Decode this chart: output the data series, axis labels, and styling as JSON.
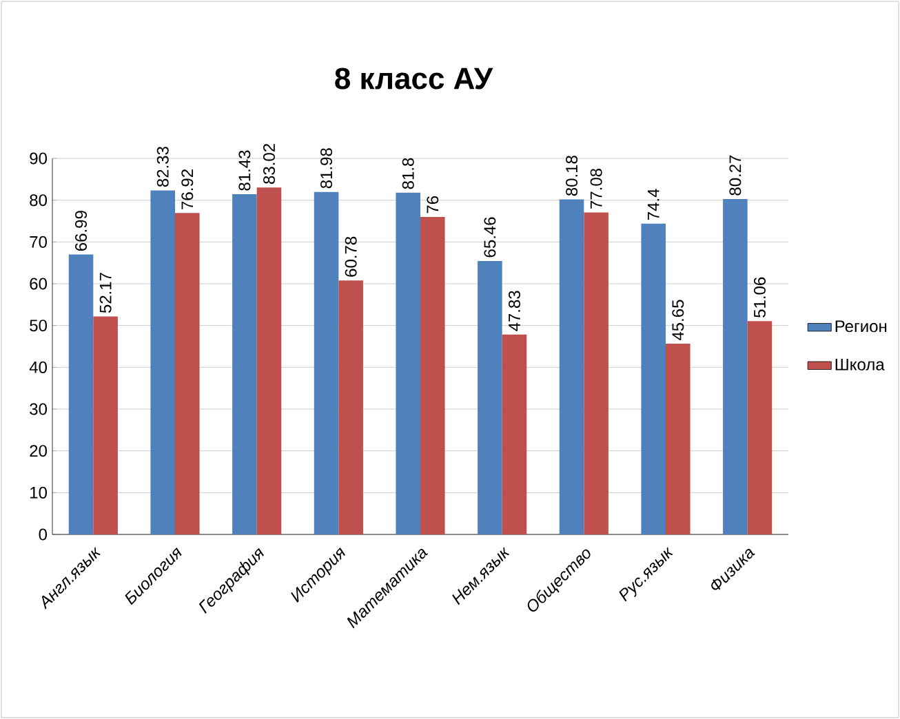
{
  "chart_data": {
    "type": "bar",
    "title": "8 класс АУ",
    "categories": [
      "Англ.язык",
      "Биология",
      "География",
      "История",
      "Математика",
      "Нем.язык",
      "Общество",
      "Рус.язык",
      "Физика"
    ],
    "series": [
      {
        "name": "Регион",
        "color": "#4f81bd",
        "values": [
          66.99,
          82.33,
          81.43,
          81.98,
          81.8,
          65.46,
          80.18,
          74.4,
          80.27
        ]
      },
      {
        "name": "Школа",
        "color": "#c0504d",
        "values": [
          52.17,
          76.92,
          83.02,
          60.78,
          76,
          47.83,
          77.08,
          45.65,
          51.06
        ]
      }
    ],
    "ylim": [
      0,
      90
    ],
    "yticks": [
      0,
      10,
      20,
      30,
      40,
      50,
      60,
      70,
      80,
      90
    ],
    "grid": "y",
    "legend": "right",
    "data_labels": true
  }
}
